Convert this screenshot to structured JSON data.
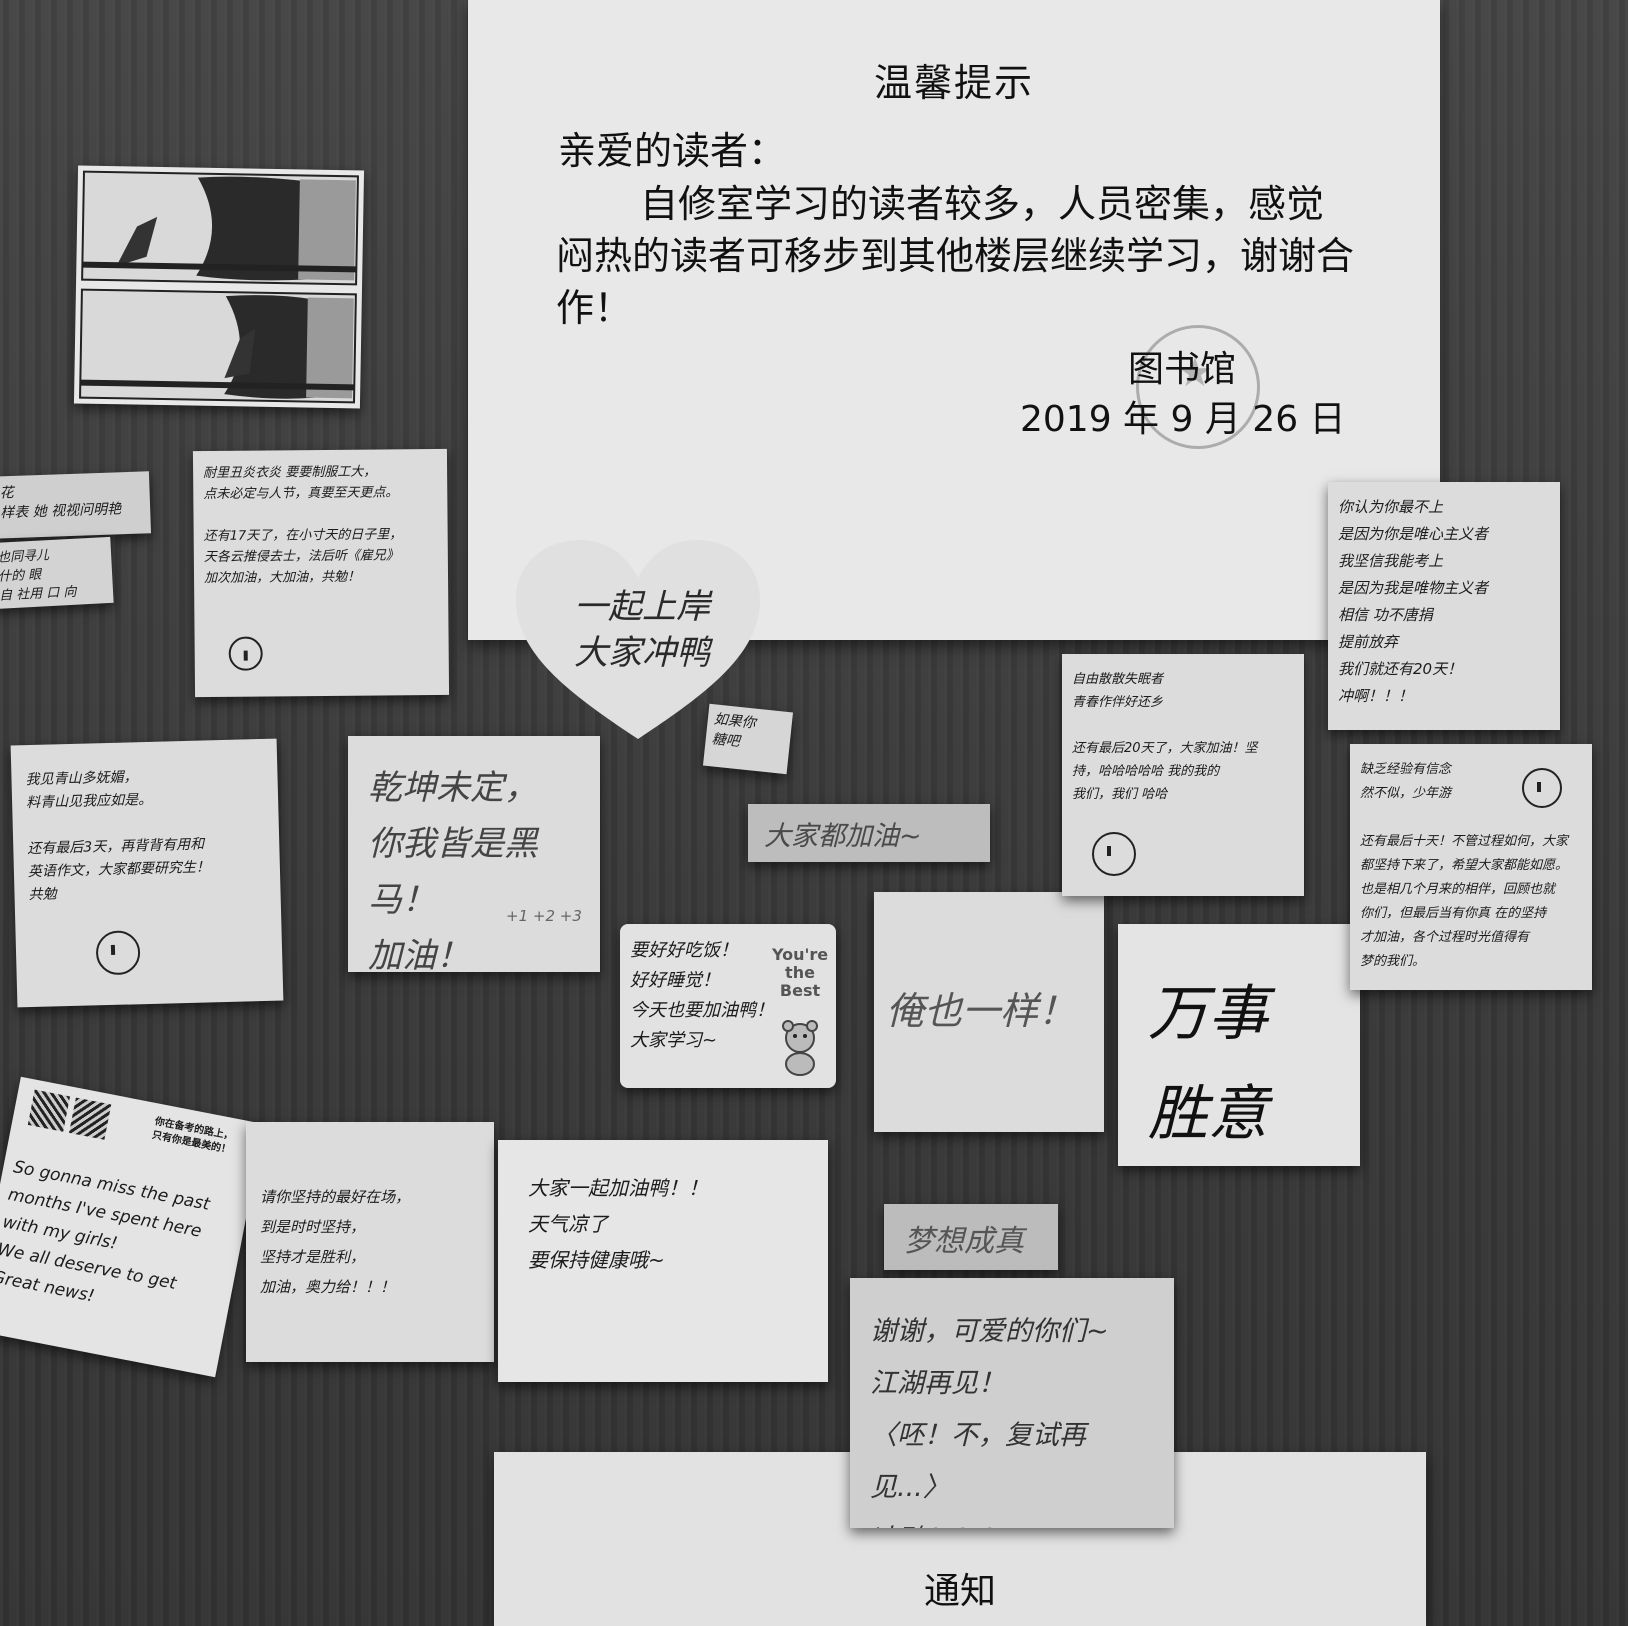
{
  "notice": {
    "title": "温馨提示",
    "greeting": "亲爱的读者：",
    "body": "自修室学习的读者较多，人员密集，感觉闷热的读者可移步到其他楼层继续学习，谢谢合作！",
    "signature": "图书馆",
    "date": "2019 年 9 月 26 日"
  },
  "bottom_notice": {
    "title": "通知"
  },
  "notes": {
    "top_left_handwritten": "耐里丑炎衣炎 要要制服工大，\n点未必定与人节，真要至天更点。\n\n还有17天了，在小寸天的日子里，\n天各云推侵去士，法后听《雇兄》\n加次加油，大加油，共勉！",
    "left_edge_top": "花\n样表 她 视视问明艳",
    "left_edge_middle": "也同寻儿\n什的 眼\n自 社用 口 向",
    "heart": "一起上岸\n大家冲鸭",
    "small_tag": "如果你\n糖吧",
    "dajia_jiayou": "大家都加油~",
    "qiankun": "乾坤未定，\n你我皆是黑马！\n加油！",
    "qiankun_plus": "+1 +2 +3",
    "left_middle": "我见青山多妩媚，\n料青山见我应如是。\n\n还有最后3天，再背背有用和\n英语作文，大家都要研究生！\n共勉",
    "youre_best_label": "You're the Best",
    "youre_best_text": "要好好吃饭！\n好好睡觉！\n今天也要加油鸭！\n大家学习~",
    "yan_ye_yiyang": "俺也一样！",
    "wanshi_shengyi": "万事\n胜意",
    "right_top": "你认为你最不上\n是因为你是唯心主义者\n我坚信我能考上\n是因为我是唯物主义者\n相信 功不唐捐\n提前放弃\n我们就还有20天！\n冲啊！！！",
    "right_middle": "自由散散失眠者\n青春作伴好还乡\n\n还有最后20天了，大家加油！坚\n持，哈哈哈哈哈 我的我的\n我们，我们 哈哈",
    "right_lower": "缺乏经验有信念\n然不似，少年游\n\n还有最后十天！不管过程如何，大家\n都坚持下来了，希望大家都能如愿。\n也是相几个月来的相伴，回顾也就\n你们，但最后当有你真 在的坚持\n才加油，各个过程时光值得有\n梦的我们。",
    "postcard_text": "So gonna miss the past\nmonths I've spent here\nwith my girls!\nWe all deserve to get\nGreat news!",
    "postcard_cn": "你在备考的路上，\n只有你是最美的！",
    "bottom_left_note": "请你坚持的最好在场，\n到是时时坚持，\n坚持才是胜利，\n加油，奥力给！！！",
    "dajia_yiqi": "大家一起加油鸭！！\n天气凉了\n要保持健康哦~",
    "mengxiang_chengzhen": "梦想成真",
    "xiexie": "谢谢，可爱的你们~\n江湖再见！\n〈呸！不，复试再见...〉\n冲鸭！！！"
  }
}
